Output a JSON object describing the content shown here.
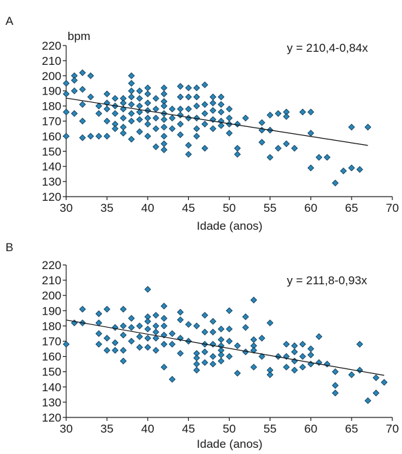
{
  "chart_data": [
    {
      "panel_label": "A",
      "type": "scatter",
      "ylabel": "bpm",
      "xlabel": "Idade (anos)",
      "equation": "y = 210,4-0,84x",
      "xlim": [
        30,
        70
      ],
      "ylim": [
        120,
        220
      ],
      "xticks": [
        30,
        35,
        40,
        45,
        50,
        55,
        60,
        65,
        70
      ],
      "yticks": [
        120,
        130,
        140,
        150,
        160,
        170,
        180,
        190,
        200,
        210,
        220
      ],
      "trendline": {
        "x": [
          30,
          67
        ],
        "y": [
          185.2,
          153.9
        ]
      },
      "marker_color": "#2a86b8",
      "points": [
        [
          30,
          195
        ],
        [
          30,
          188
        ],
        [
          30,
          176
        ],
        [
          30,
          160
        ],
        [
          31,
          200
        ],
        [
          31,
          197
        ],
        [
          31,
          190
        ],
        [
          31,
          175
        ],
        [
          32,
          202
        ],
        [
          32,
          191
        ],
        [
          32,
          181
        ],
        [
          32,
          170
        ],
        [
          32,
          159
        ],
        [
          33,
          200
        ],
        [
          33,
          186
        ],
        [
          33,
          160
        ],
        [
          34,
          180
        ],
        [
          34,
          175
        ],
        [
          34,
          160
        ],
        [
          35,
          188
        ],
        [
          35,
          182
        ],
        [
          35,
          178
        ],
        [
          35,
          170
        ],
        [
          35,
          160
        ],
        [
          36,
          185
        ],
        [
          36,
          180
        ],
        [
          36,
          175
        ],
        [
          36,
          168
        ],
        [
          36,
          165
        ],
        [
          37,
          185
        ],
        [
          37,
          182
        ],
        [
          37,
          178
        ],
        [
          37,
          172
        ],
        [
          37,
          166
        ],
        [
          37,
          162
        ],
        [
          38,
          200
        ],
        [
          38,
          195
        ],
        [
          38,
          190
        ],
        [
          38,
          186
        ],
        [
          38,
          181
        ],
        [
          38,
          175
        ],
        [
          38,
          170
        ],
        [
          38,
          158
        ],
        [
          39,
          190
        ],
        [
          39,
          185
        ],
        [
          39,
          180
        ],
        [
          39,
          176
        ],
        [
          39,
          171
        ],
        [
          39,
          163
        ],
        [
          40,
          192
        ],
        [
          40,
          188
        ],
        [
          40,
          182
        ],
        [
          40,
          177
        ],
        [
          40,
          172
        ],
        [
          40,
          168
        ],
        [
          40,
          160
        ],
        [
          41,
          185
        ],
        [
          41,
          178
        ],
        [
          41,
          172
        ],
        [
          41,
          165
        ],
        [
          41,
          153
        ],
        [
          42,
          192
        ],
        [
          42,
          188
        ],
        [
          42,
          183
        ],
        [
          42,
          180
        ],
        [
          42,
          175
        ],
        [
          42,
          171
        ],
        [
          42,
          166
        ],
        [
          42,
          160
        ],
        [
          42,
          155
        ],
        [
          42,
          151
        ],
        [
          43,
          178
        ],
        [
          43,
          172
        ],
        [
          43,
          165
        ],
        [
          44,
          193
        ],
        [
          44,
          186
        ],
        [
          44,
          178
        ],
        [
          44,
          174
        ],
        [
          44,
          168
        ],
        [
          44,
          161
        ],
        [
          45,
          192
        ],
        [
          45,
          186
        ],
        [
          45,
          178
        ],
        [
          45,
          172
        ],
        [
          45,
          154
        ],
        [
          45,
          148
        ],
        [
          46,
          192
        ],
        [
          46,
          186
        ],
        [
          46,
          180
        ],
        [
          46,
          172
        ],
        [
          46,
          165
        ],
        [
          46,
          160
        ],
        [
          47,
          194
        ],
        [
          47,
          181
        ],
        [
          47,
          175
        ],
        [
          47,
          168
        ],
        [
          47,
          152
        ],
        [
          48,
          186
        ],
        [
          48,
          182
        ],
        [
          48,
          177
        ],
        [
          48,
          171
        ],
        [
          48,
          165
        ],
        [
          49,
          186
        ],
        [
          49,
          181
        ],
        [
          49,
          176
        ],
        [
          49,
          170
        ],
        [
          49,
          167
        ],
        [
          50,
          178
        ],
        [
          50,
          172
        ],
        [
          50,
          168
        ],
        [
          50,
          162
        ],
        [
          51,
          168
        ],
        [
          51,
          152
        ],
        [
          51,
          148
        ],
        [
          52,
          172
        ],
        [
          54,
          169
        ],
        [
          54,
          164
        ],
        [
          54,
          156
        ],
        [
          55,
          174
        ],
        [
          55,
          164
        ],
        [
          55,
          146
        ],
        [
          56,
          175
        ],
        [
          56,
          152
        ],
        [
          57,
          176
        ],
        [
          57,
          173
        ],
        [
          57,
          155
        ],
        [
          58,
          152
        ],
        [
          59,
          176
        ],
        [
          60,
          176
        ],
        [
          60,
          162
        ],
        [
          60,
          139
        ],
        [
          61,
          146
        ],
        [
          62,
          146
        ],
        [
          63,
          129
        ],
        [
          64,
          137
        ],
        [
          65,
          166
        ],
        [
          65,
          139
        ],
        [
          66,
          138
        ],
        [
          67,
          166
        ]
      ]
    },
    {
      "panel_label": "B",
      "type": "scatter",
      "ylabel": "",
      "xlabel": "Idade (anos)",
      "equation": "y = 211,8-0,93x",
      "xlim": [
        30,
        70
      ],
      "ylim": [
        120,
        220
      ],
      "xticks": [
        30,
        35,
        40,
        45,
        50,
        55,
        60,
        65,
        70
      ],
      "yticks": [
        120,
        130,
        140,
        150,
        160,
        170,
        180,
        190,
        200,
        210,
        220
      ],
      "trendline": {
        "x": [
          30,
          69
        ],
        "y": [
          183.9,
          147.6
        ]
      },
      "marker_color": "#2a86b8",
      "points": [
        [
          30,
          168
        ],
        [
          31,
          182
        ],
        [
          32,
          191
        ],
        [
          32,
          182
        ],
        [
          34,
          188
        ],
        [
          34,
          182
        ],
        [
          34,
          175
        ],
        [
          34,
          168
        ],
        [
          35,
          191
        ],
        [
          35,
          172
        ],
        [
          35,
          164
        ],
        [
          36,
          179
        ],
        [
          36,
          169
        ],
        [
          36,
          164
        ],
        [
          37,
          191
        ],
        [
          37,
          180
        ],
        [
          37,
          174
        ],
        [
          37,
          164
        ],
        [
          37,
          157
        ],
        [
          38,
          185
        ],
        [
          38,
          179
        ],
        [
          38,
          170
        ],
        [
          39,
          180
        ],
        [
          39,
          173
        ],
        [
          39,
          166
        ],
        [
          40,
          204
        ],
        [
          40,
          186
        ],
        [
          40,
          183
        ],
        [
          40,
          178
        ],
        [
          40,
          172
        ],
        [
          40,
          166
        ],
        [
          41,
          187
        ],
        [
          41,
          180
        ],
        [
          41,
          176
        ],
        [
          41,
          172
        ],
        [
          41,
          164
        ],
        [
          42,
          193
        ],
        [
          42,
          185
        ],
        [
          42,
          180
        ],
        [
          42,
          174
        ],
        [
          42,
          168
        ],
        [
          42,
          153
        ],
        [
          43,
          175
        ],
        [
          43,
          168
        ],
        [
          43,
          145
        ],
        [
          44,
          189
        ],
        [
          44,
          184
        ],
        [
          44,
          172
        ],
        [
          44,
          162
        ],
        [
          45,
          181
        ],
        [
          45,
          170
        ],
        [
          46,
          180
        ],
        [
          46,
          162
        ],
        [
          46,
          159
        ],
        [
          46,
          155
        ],
        [
          46,
          151
        ],
        [
          47,
          187
        ],
        [
          47,
          176
        ],
        [
          47,
          168
        ],
        [
          47,
          163
        ],
        [
          47,
          156
        ],
        [
          48,
          183
        ],
        [
          48,
          176
        ],
        [
          48,
          168
        ],
        [
          48,
          160
        ],
        [
          48,
          155
        ],
        [
          49,
          178
        ],
        [
          49,
          171
        ],
        [
          49,
          167
        ],
        [
          49,
          164
        ],
        [
          49,
          161
        ],
        [
          49,
          157
        ],
        [
          50,
          190
        ],
        [
          50,
          178
        ],
        [
          50,
          170
        ],
        [
          50,
          160
        ],
        [
          51,
          167
        ],
        [
          51,
          149
        ],
        [
          52,
          186
        ],
        [
          52,
          179
        ],
        [
          52,
          163
        ],
        [
          53,
          197
        ],
        [
          53,
          171
        ],
        [
          53,
          167
        ],
        [
          53,
          164
        ],
        [
          53,
          153
        ],
        [
          54,
          172
        ],
        [
          54,
          160
        ],
        [
          55,
          182
        ],
        [
          55,
          151
        ],
        [
          55,
          148
        ],
        [
          56,
          160
        ],
        [
          57,
          168
        ],
        [
          57,
          160
        ],
        [
          57,
          153
        ],
        [
          58,
          167
        ],
        [
          58,
          163
        ],
        [
          58,
          157
        ],
        [
          58,
          151
        ],
        [
          59,
          168
        ],
        [
          59,
          160
        ],
        [
          59,
          153
        ],
        [
          60,
          165
        ],
        [
          60,
          161
        ],
        [
          60,
          155
        ],
        [
          61,
          173
        ],
        [
          61,
          156
        ],
        [
          62,
          155
        ],
        [
          63,
          150
        ],
        [
          63,
          141
        ],
        [
          63,
          136
        ],
        [
          65,
          148
        ],
        [
          66,
          168
        ],
        [
          66,
          151
        ],
        [
          67,
          131
        ],
        [
          68,
          136
        ],
        [
          68,
          146
        ],
        [
          69,
          143
        ]
      ]
    }
  ]
}
